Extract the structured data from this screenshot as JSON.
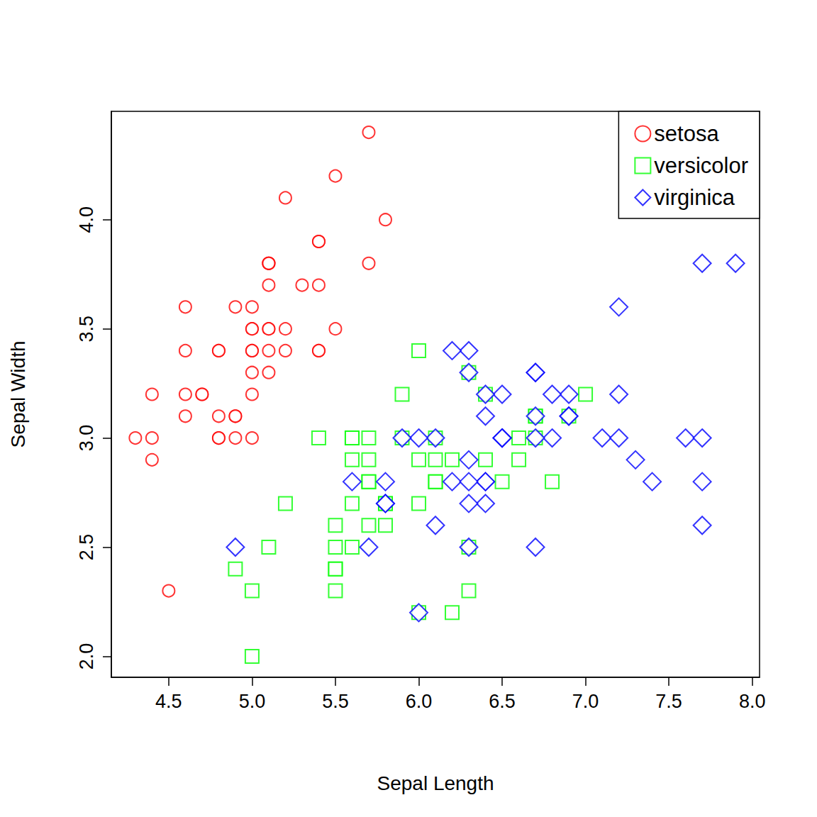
{
  "chart_data": {
    "type": "scatter",
    "x_label": "Sepal Length",
    "y_label": "Sepal Width",
    "xlim": [
      4.156,
      8.044
    ],
    "ylim": [
      1.904,
      4.496
    ],
    "xticks": [
      4.5,
      {
        "value": 5,
        "label": "5.0"
      },
      5.5,
      {
        "value": 6,
        "label": "6.0"
      },
      6.5,
      {
        "value": 7,
        "label": "7.0"
      },
      7.5,
      {
        "value": 8,
        "label": "8.0"
      }
    ],
    "yticks": [
      {
        "value": 2,
        "label": "2.0"
      },
      2.5,
      {
        "value": 3,
        "label": "3.0"
      },
      3.5,
      {
        "value": 4,
        "label": "4.0"
      }
    ],
    "grid": false,
    "legend": "top-right",
    "series": [
      {
        "name": "setosa",
        "color": "#ff0000",
        "marker": "circle",
        "x": [
          5.1,
          4.9,
          4.7,
          4.6,
          5.0,
          5.4,
          4.6,
          5.0,
          4.4,
          4.9,
          5.4,
          4.8,
          4.8,
          4.3,
          5.8,
          5.7,
          5.4,
          5.1,
          5.7,
          5.1,
          5.4,
          5.1,
          4.6,
          5.1,
          4.8,
          5.0,
          5.0,
          5.2,
          5.2,
          4.7,
          4.8,
          5.4,
          5.2,
          5.5,
          4.9,
          5.0,
          5.5,
          4.9,
          4.4,
          5.1,
          5.0,
          4.5,
          4.4,
          5.0,
          5.1,
          4.8,
          5.1,
          4.6,
          5.3,
          5.0
        ],
        "values": [
          3.5,
          3.0,
          3.2,
          3.1,
          3.6,
          3.9,
          3.4,
          3.4,
          2.9,
          3.1,
          3.7,
          3.4,
          3.0,
          3.0,
          4.0,
          4.4,
          3.9,
          3.5,
          3.8,
          3.8,
          3.4,
          3.7,
          3.6,
          3.3,
          3.4,
          3.0,
          3.4,
          3.5,
          3.4,
          3.2,
          3.1,
          3.4,
          4.1,
          4.2,
          3.1,
          3.2,
          3.5,
          3.6,
          3.0,
          3.4,
          3.5,
          2.3,
          3.2,
          3.5,
          3.8,
          3.0,
          3.8,
          3.2,
          3.7,
          3.3
        ]
      },
      {
        "name": "versicolor",
        "color": "#00ff00",
        "marker": "square",
        "x": [
          7.0,
          6.4,
          6.9,
          5.5,
          6.5,
          5.7,
          6.3,
          4.9,
          6.6,
          5.2,
          5.0,
          5.9,
          6.0,
          6.1,
          5.6,
          6.7,
          5.6,
          5.8,
          6.2,
          5.6,
          5.9,
          6.1,
          6.3,
          6.1,
          6.4,
          6.6,
          6.8,
          6.7,
          6.0,
          5.7,
          5.5,
          5.5,
          5.8,
          6.0,
          5.4,
          6.0,
          6.7,
          6.3,
          5.6,
          5.5,
          5.5,
          6.1,
          5.8,
          5.0,
          5.6,
          5.7,
          5.7,
          6.2,
          5.1,
          5.7
        ],
        "values": [
          3.2,
          3.2,
          3.1,
          2.3,
          2.8,
          2.8,
          3.3,
          2.4,
          2.9,
          2.7,
          2.0,
          3.0,
          2.2,
          2.9,
          2.9,
          3.1,
          3.0,
          2.7,
          2.2,
          2.5,
          3.2,
          2.8,
          2.5,
          2.8,
          2.9,
          3.0,
          2.8,
          3.0,
          2.9,
          2.6,
          2.4,
          2.4,
          2.7,
          2.7,
          3.0,
          3.4,
          3.1,
          2.3,
          3.0,
          2.5,
          2.6,
          3.0,
          2.6,
          2.3,
          2.7,
          3.0,
          2.9,
          2.9,
          2.5,
          2.8
        ]
      },
      {
        "name": "virginica",
        "color": "#0000ff",
        "marker": "diamond",
        "x": [
          6.3,
          5.8,
          7.1,
          6.3,
          6.5,
          7.6,
          4.9,
          7.3,
          6.7,
          7.2,
          6.5,
          6.4,
          6.8,
          5.7,
          5.8,
          6.4,
          6.5,
          7.7,
          7.7,
          6.0,
          6.9,
          5.6,
          7.7,
          6.3,
          6.7,
          7.2,
          6.2,
          6.1,
          6.4,
          7.2,
          7.4,
          7.9,
          6.4,
          6.3,
          6.1,
          7.7,
          6.3,
          6.4,
          6.0,
          6.9,
          6.7,
          6.9,
          5.8,
          6.8,
          6.7,
          6.7,
          6.3,
          6.5,
          6.2,
          5.9
        ],
        "values": [
          3.3,
          2.7,
          3.0,
          2.9,
          3.0,
          3.0,
          2.5,
          2.9,
          2.5,
          3.6,
          3.2,
          2.7,
          3.0,
          2.5,
          2.8,
          3.2,
          3.0,
          3.8,
          2.6,
          2.2,
          3.2,
          2.8,
          2.8,
          2.7,
          3.3,
          3.2,
          2.8,
          3.0,
          2.8,
          3.0,
          2.8,
          3.8,
          2.8,
          2.8,
          2.6,
          3.0,
          3.4,
          3.1,
          3.0,
          3.1,
          3.1,
          3.1,
          2.7,
          3.2,
          3.3,
          3.0,
          2.5,
          3.0,
          3.4,
          3.0
        ]
      }
    ]
  }
}
